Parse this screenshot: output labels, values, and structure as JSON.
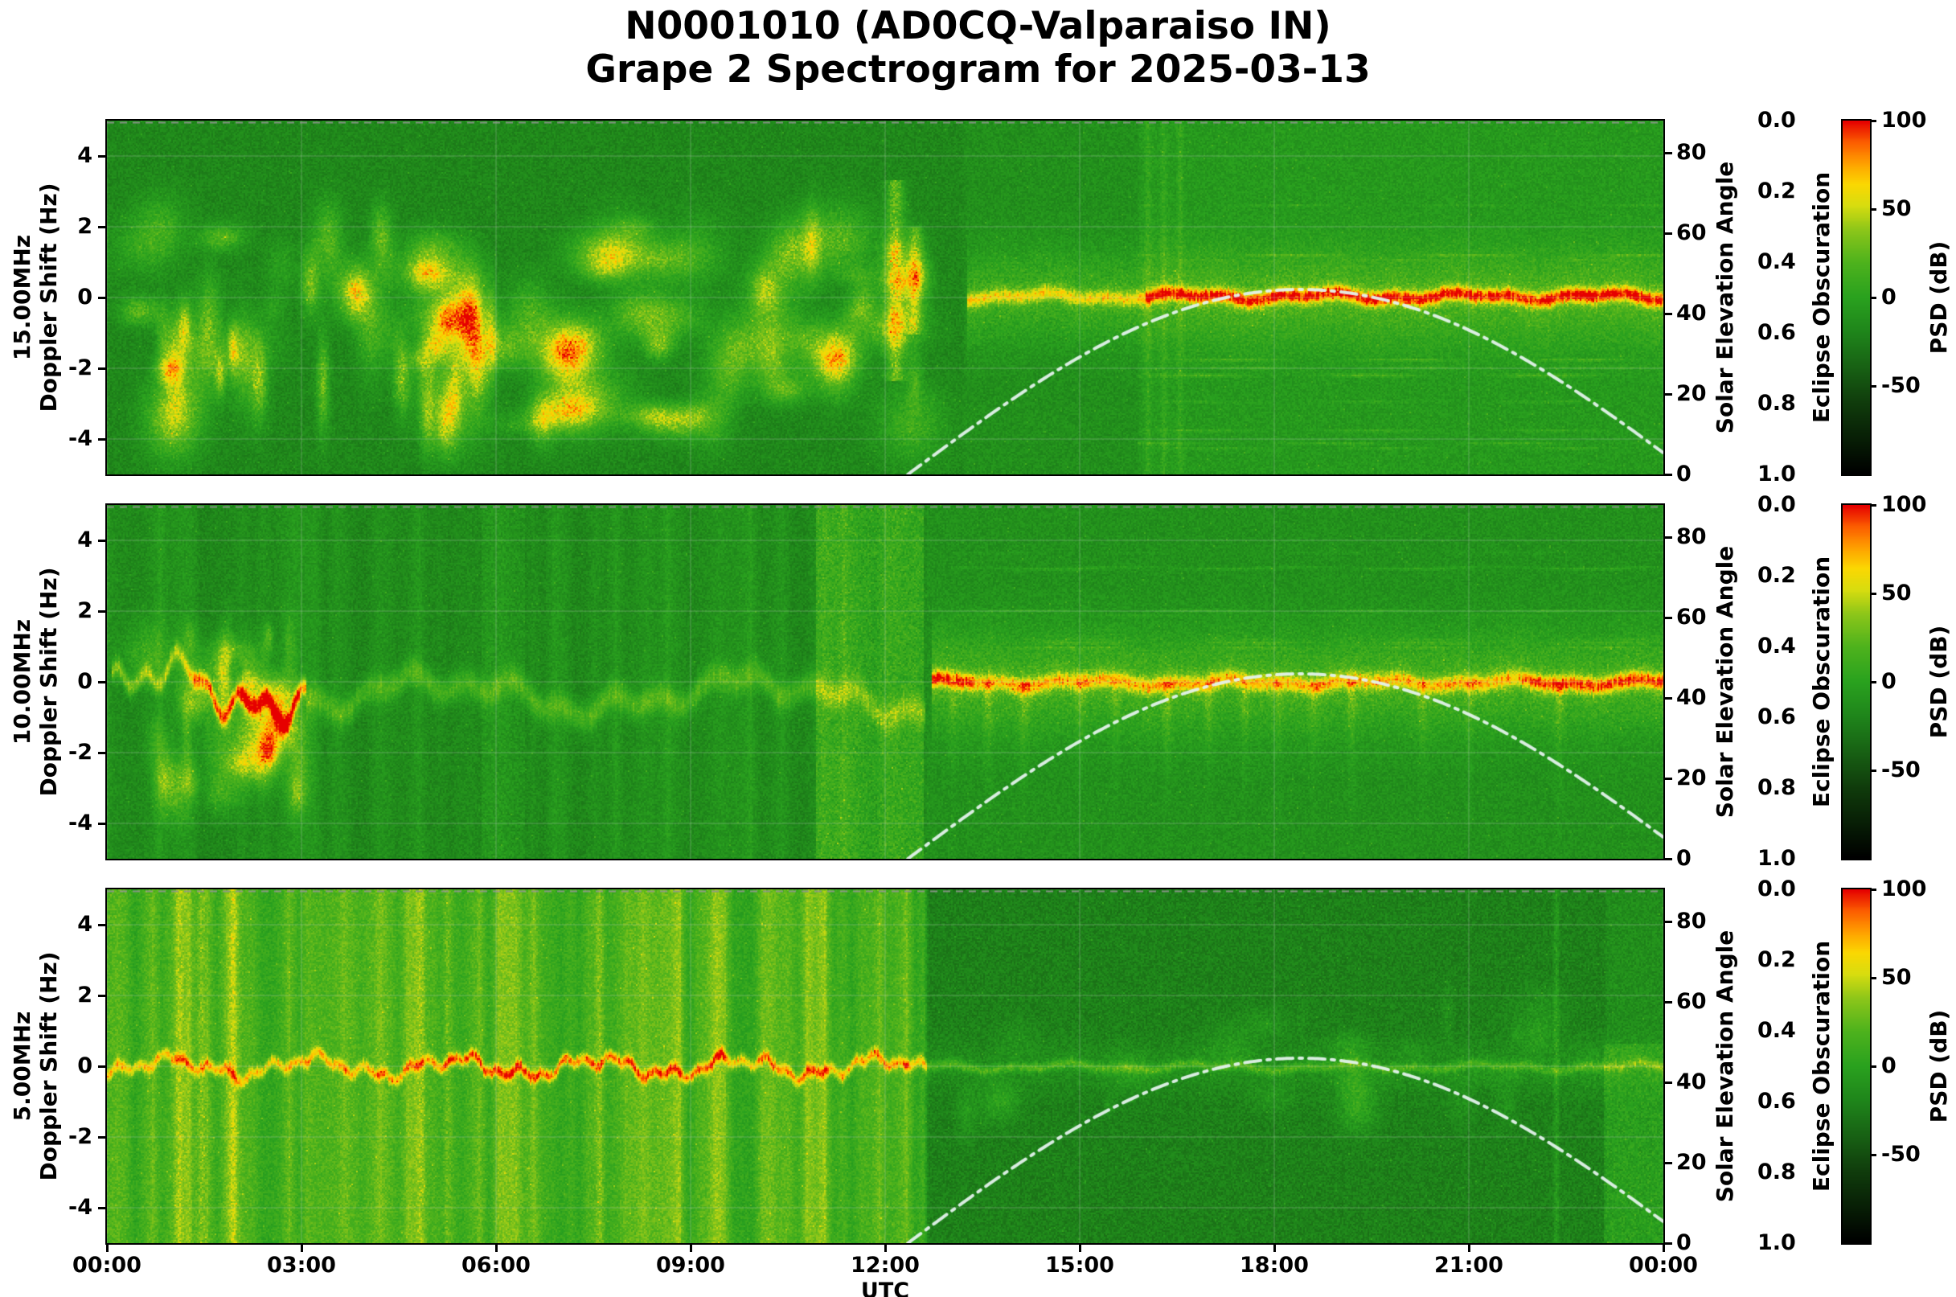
{
  "title": {
    "line1": "N0001010 (AD0CQ-Valparaiso IN)",
    "line2": "Grape 2 Spectrogram for 2025-03-13"
  },
  "chart_data": {
    "type": "heatmap",
    "subtype": "doppler-spectrogram",
    "station": "N0001010 (AD0CQ-Valparaiso IN)",
    "date": "2025-03-13",
    "xlabel": "UTC",
    "x_range_hours": [
      0,
      24
    ],
    "x_ticks": [
      {
        "h": 0,
        "label": "00:00"
      },
      {
        "h": 3,
        "label": "03:00"
      },
      {
        "h": 6,
        "label": "06:00"
      },
      {
        "h": 9,
        "label": "09:00"
      },
      {
        "h": 12,
        "label": "12:00"
      },
      {
        "h": 15,
        "label": "15:00"
      },
      {
        "h": 18,
        "label": "18:00"
      },
      {
        "h": 21,
        "label": "21:00"
      },
      {
        "h": 24,
        "label": "00:00"
      }
    ],
    "y_axis": {
      "label": "Doppler Shift (Hz)",
      "range": [
        -5,
        5
      ],
      "ticks": [
        {
          "v": 4,
          "label": "4"
        },
        {
          "v": 2,
          "label": "2"
        },
        {
          "v": 0,
          "label": "0"
        },
        {
          "v": -2,
          "label": "-2"
        },
        {
          "v": -4,
          "label": "-4"
        }
      ]
    },
    "right_axes": {
      "solar": {
        "label": "Solar Elevation Angle",
        "range": [
          0,
          88
        ],
        "ticks": [
          {
            "v": 80,
            "label": "80"
          },
          {
            "v": 60,
            "label": "60"
          },
          {
            "v": 40,
            "label": "40"
          },
          {
            "v": 20,
            "label": "20"
          },
          {
            "v": 0,
            "label": "0"
          }
        ]
      },
      "eclipse": {
        "label": "Eclipse Obscuration",
        "range": [
          0,
          1
        ],
        "inverted": true,
        "ticks": [
          {
            "v": 0.0,
            "label": "0.0"
          },
          {
            "v": 0.2,
            "label": "0.2"
          },
          {
            "v": 0.4,
            "label": "0.4"
          },
          {
            "v": 0.6,
            "label": "0.6"
          },
          {
            "v": 0.8,
            "label": "0.8"
          },
          {
            "v": 1.0,
            "label": "1.0"
          }
        ]
      }
    },
    "colorbar": {
      "label": "PSD (dB)",
      "range": [
        -100,
        100
      ],
      "ticks": [
        {
          "v": 100,
          "label": "100"
        },
        {
          "v": 50,
          "label": "50"
        },
        {
          "v": 0,
          "label": "0"
        },
        {
          "v": -50,
          "label": "-50"
        }
      ],
      "stops": [
        {
          "v": -100,
          "c": "#000000"
        },
        {
          "v": -80,
          "c": "#081f06"
        },
        {
          "v": -60,
          "c": "#103c0c"
        },
        {
          "v": -40,
          "c": "#186114"
        },
        {
          "v": -20,
          "c": "#1f851b"
        },
        {
          "v": 0,
          "c": "#2aa21f"
        },
        {
          "v": 20,
          "c": "#4fb31d"
        },
        {
          "v": 38,
          "c": "#8cc61a"
        },
        {
          "v": 52,
          "c": "#d8dd10"
        },
        {
          "v": 64,
          "c": "#fbd803"
        },
        {
          "v": 76,
          "c": "#ffa000"
        },
        {
          "v": 88,
          "c": "#fc5d00"
        },
        {
          "v": 100,
          "c": "#e60000"
        }
      ]
    },
    "solar_curve": {
      "rise_utc": 12.35,
      "set_utc": 24.45,
      "peak_utc": 18.4,
      "max_elevation_deg": 46,
      "line_style": "dash-dot",
      "color": "#e4f1ea"
    },
    "panels": [
      {
        "freq_label": "15.00MHz",
        "seed": 11,
        "noise": 9,
        "base": [
          {
            "t0": 0,
            "t1": 13.2,
            "v": -18
          },
          {
            "t0": 13.2,
            "t1": 15.9,
            "v": -13
          },
          {
            "t0": 15.9,
            "t1": 24,
            "v": -6
          }
        ],
        "features": [
          {
            "kind": "blobs",
            "n": 80,
            "t0": 0.3,
            "t1": 12.5,
            "f0": -3.6,
            "f1": 2.1,
            "amp": [
              16,
              45
            ],
            "st": [
              0.07,
              0.4
            ],
            "sf": [
              0.2,
              0.8
            ]
          },
          {
            "kind": "blobs",
            "n": 18,
            "t0": 0.8,
            "t1": 6.5,
            "f0": -2.5,
            "f1": 0.5,
            "amp": [
              30,
              52
            ],
            "st": [
              0.05,
              0.18
            ],
            "sf": [
              0.3,
              1.1
            ]
          },
          {
            "kind": "ridge",
            "t": 12.15,
            "f0": -2.3,
            "f1": 3.3,
            "amp": 42,
            "st": 0.1
          },
          {
            "kind": "ridge",
            "t": 12.45,
            "f0": -1.0,
            "f1": 2.0,
            "amp": 30,
            "st": 0.07
          },
          {
            "kind": "carrier",
            "t0": 13.25,
            "t1": 24,
            "f": 0.05,
            "sigma": 0.15,
            "amp": [
              {
                "t0": 13.25,
                "t1": 16,
                "a": 52
              },
              {
                "t0": 16,
                "t1": 24,
                "a": 86
              }
            ],
            "haze_sigma": 0.9,
            "haze_amp": 24
          },
          {
            "kind": "hstreaks",
            "t0": 15.9,
            "t1": 24,
            "n": 11,
            "f0": -4.6,
            "f1": 4.6,
            "amp": 13
          },
          {
            "kind": "vlines",
            "ts": [
              16.05,
              16.3,
              16.55
            ],
            "amp": 11,
            "sigma": 0.035
          }
        ]
      },
      {
        "freq_label": "10.00MHz",
        "seed": 22,
        "noise": 9,
        "base": [
          {
            "t0": 0,
            "t1": 24,
            "v": -12
          }
        ],
        "features": [
          {
            "kind": "vstripes",
            "t0": 0,
            "t1": 12.6,
            "amp": 8,
            "scale": 0.16
          },
          {
            "kind": "blobs",
            "n": 30,
            "t0": 0.3,
            "t1": 3.0,
            "f0": -3.2,
            "f1": 1.8,
            "amp": [
              18,
              42
            ],
            "st": [
              0.05,
              0.25
            ],
            "sf": [
              0.25,
              0.8
            ]
          },
          {
            "kind": "meander",
            "t0": 0.05,
            "t1": 3.05,
            "fbase": -0.2,
            "wamp": 1.1,
            "wf": 1.6,
            "sigma": 0.18,
            "amp": [
              {
                "t0": 0.05,
                "t1": 1.3,
                "a": 45
              },
              {
                "t0": 1.3,
                "t1": 3.05,
                "a": 78
              }
            ]
          },
          {
            "kind": "meander",
            "t0": 3.05,
            "t1": 12.6,
            "fbase": -0.35,
            "wamp": 0.7,
            "wf": 1.0,
            "sigma": 0.28,
            "amp": [
              {
                "t0": 3.05,
                "t1": 12.6,
                "a": 32
              }
            ]
          },
          {
            "kind": "band",
            "t0": 10.95,
            "t1": 12.55,
            "f0": -5,
            "f1": 5,
            "amp": 20
          },
          {
            "kind": "band",
            "t0": 5.8,
            "t1": 6.4,
            "f0": -5,
            "f1": 5,
            "amp": 8
          },
          {
            "kind": "carrier",
            "t0": 12.7,
            "t1": 24,
            "f": 0,
            "sigma": 0.17,
            "amp": [
              {
                "t0": 12.7,
                "t1": 13.35,
                "a": 84
              },
              {
                "t0": 13.35,
                "t1": 21.8,
                "a": 60
              },
              {
                "t0": 21.8,
                "t1": 24,
                "a": 80
              }
            ],
            "haze_sigma": 1.0,
            "haze_amp": 26
          },
          {
            "kind": "vspikes",
            "ts": [
              13.05,
              13.6,
              14.15,
              15.0,
              15.55,
              16.35,
              17.0,
              17.55,
              18.05,
              18.6,
              19.2,
              20.3,
              21.0,
              22.4
            ],
            "amp": 24,
            "sigma": 0.05,
            "fdecay": 1.6
          },
          {
            "kind": "hstreaks",
            "t0": 13.0,
            "t1": 24,
            "n": 8,
            "f0": 0.8,
            "f1": 3.9,
            "amp": 10
          }
        ]
      },
      {
        "freq_label": "5.00MHz",
        "seed": 33,
        "noise": 10,
        "base": [
          {
            "t0": 0,
            "t1": 12.62,
            "v": 16
          },
          {
            "t0": 12.62,
            "t1": 23.1,
            "v": -22
          },
          {
            "t0": 23.1,
            "t1": 24,
            "v": -14
          }
        ],
        "features": [
          {
            "kind": "vstripes",
            "t0": 0,
            "t1": 12.6,
            "amp": 14,
            "scale": 0.14
          },
          {
            "kind": "vlines",
            "ts": [
              1.1,
              1.45,
              1.95,
              4.85,
              5.25,
              7.6
            ],
            "amp": 18,
            "sigma": 0.05
          },
          {
            "kind": "meander",
            "t0": 0,
            "t1": 12.62,
            "fbase": 0,
            "wamp": 0.4,
            "wf": 2.2,
            "sigma": 0.12,
            "amp": [
              {
                "t0": 0,
                "t1": 5,
                "a": 55
              },
              {
                "t0": 5,
                "t1": 9.5,
                "a": 72
              },
              {
                "t0": 9.5,
                "t1": 12.62,
                "a": 62
              }
            ]
          },
          {
            "kind": "carrier",
            "t0": 12.62,
            "t1": 24,
            "f": 0,
            "sigma": 0.09,
            "amp": [
              {
                "t0": 12.62,
                "t1": 24,
                "a": 30
              }
            ],
            "haze_sigma": 0.45,
            "haze_amp": 10
          },
          {
            "kind": "vlines",
            "ts": [
              22.35
            ],
            "amp": 16,
            "sigma": 0.03
          },
          {
            "kind": "band",
            "t0": 23.1,
            "t1": 24,
            "f0": -5,
            "f1": 0.6,
            "amp": 12
          },
          {
            "kind": "blobs",
            "n": 25,
            "t0": 12.8,
            "t1": 23.0,
            "f0": -1.5,
            "f1": 1.5,
            "amp": [
              6,
              14
            ],
            "st": [
              0.05,
              0.3
            ],
            "sf": [
              0.2,
              0.6
            ]
          }
        ]
      }
    ]
  }
}
